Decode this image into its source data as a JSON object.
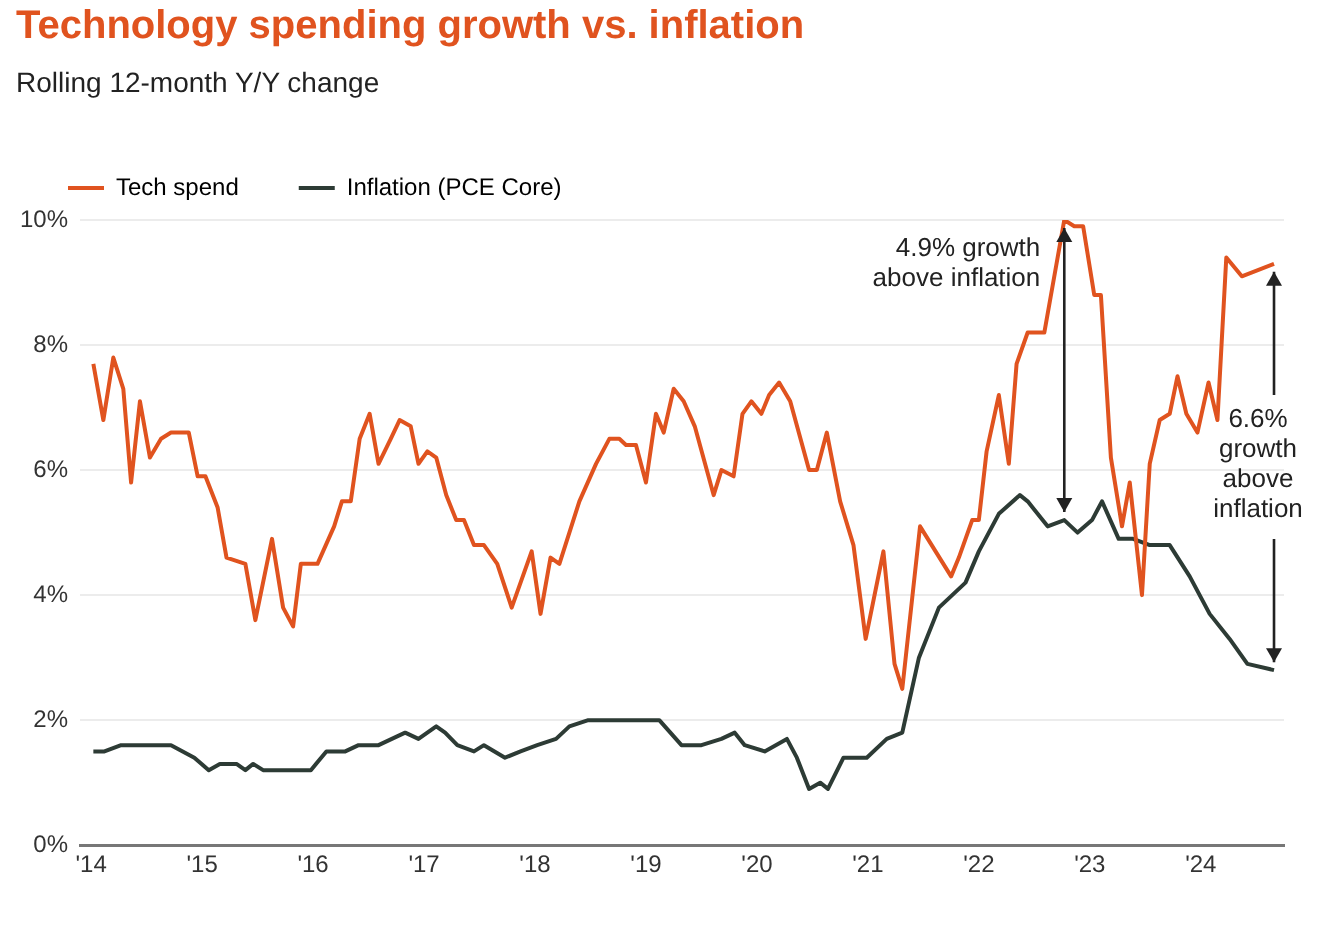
{
  "chart_data": {
    "type": "line",
    "title": "Technology spending growth vs. inflation",
    "subtitle": "Rolling 12-month Y/Y change",
    "series": [
      {
        "name": "Tech spend",
        "color": "#e0531f",
        "x": [
          2014.02,
          2014.11,
          2014.2,
          2014.29,
          2014.36,
          2014.44,
          2014.53,
          2014.63,
          2014.72,
          2014.88,
          2014.96,
          2015.03,
          2015.14,
          2015.22,
          2015.39,
          2015.48,
          2015.63,
          2015.73,
          2015.82,
          2015.89,
          2016.04,
          2016.19,
          2016.26,
          2016.34,
          2016.42,
          2016.51,
          2016.59,
          2016.7,
          2016.78,
          2016.88,
          2016.95,
          2017.03,
          2017.11,
          2017.2,
          2017.29,
          2017.36,
          2017.45,
          2017.54,
          2017.66,
          2017.79,
          2017.97,
          2018.05,
          2018.14,
          2018.22,
          2018.4,
          2018.55,
          2018.67,
          2018.76,
          2018.82,
          2018.91,
          2019.0,
          2019.09,
          2019.16,
          2019.25,
          2019.34,
          2019.44,
          2019.61,
          2019.68,
          2019.79,
          2019.87,
          2019.95,
          2020.04,
          2020.11,
          2020.2,
          2020.3,
          2020.47,
          2020.54,
          2020.63,
          2020.75,
          2020.87,
          2020.98,
          2021.06,
          2021.14,
          2021.24,
          2021.31,
          2021.47,
          2021.75,
          2021.82,
          2021.94,
          2022.0,
          2022.07,
          2022.18,
          2022.27,
          2022.34,
          2022.44,
          2022.59,
          2022.7,
          2022.77,
          2022.86,
          2022.94,
          2023.04,
          2023.1,
          2023.19,
          2023.29,
          2023.36,
          2023.47,
          2023.54,
          2023.63,
          2023.72,
          2023.79,
          2023.87,
          2023.97,
          2024.07,
          2024.15,
          2024.23,
          2024.37,
          2024.66
        ],
        "values": [
          7.7,
          6.8,
          7.8,
          7.3,
          5.8,
          7.1,
          6.2,
          6.5,
          6.6,
          6.6,
          5.9,
          5.9,
          5.4,
          4.6,
          4.5,
          3.6,
          4.9,
          3.8,
          3.5,
          4.5,
          4.5,
          5.1,
          5.5,
          5.5,
          6.5,
          6.9,
          6.1,
          6.5,
          6.8,
          6.7,
          6.1,
          6.3,
          6.2,
          5.6,
          5.2,
          5.2,
          4.8,
          4.8,
          4.5,
          3.8,
          4.7,
          3.7,
          4.6,
          4.5,
          5.5,
          6.1,
          6.5,
          6.5,
          6.4,
          6.4,
          5.8,
          6.9,
          6.6,
          7.3,
          7.1,
          6.7,
          5.6,
          6.0,
          5.9,
          6.9,
          7.1,
          6.9,
          7.2,
          7.4,
          7.1,
          6.0,
          6.0,
          6.6,
          5.5,
          4.8,
          3.3,
          4.0,
          4.7,
          2.9,
          2.5,
          5.1,
          4.3,
          4.6,
          5.2,
          5.2,
          6.3,
          7.2,
          6.1,
          7.7,
          8.2,
          8.2,
          9.3,
          10.0,
          9.9,
          9.9,
          8.8,
          8.8,
          6.2,
          5.1,
          5.8,
          4.0,
          6.1,
          6.8,
          6.9,
          7.5,
          6.9,
          6.6,
          7.4,
          6.8,
          9.4,
          9.1,
          9.3
        ]
      },
      {
        "name": "Inflation (PCE Core)",
        "color": "#2d3b35",
        "x": [
          2014.02,
          2014.12,
          2014.27,
          2014.57,
          2014.72,
          2014.93,
          2015.06,
          2015.16,
          2015.31,
          2015.39,
          2015.46,
          2015.55,
          2015.98,
          2016.12,
          2016.29,
          2016.41,
          2016.59,
          2016.71,
          2016.83,
          2016.95,
          2017.11,
          2017.19,
          2017.3,
          2017.45,
          2017.54,
          2017.73,
          2017.87,
          2018.02,
          2018.19,
          2018.31,
          2018.48,
          2018.73,
          2019.03,
          2019.12,
          2019.32,
          2019.5,
          2019.68,
          2019.8,
          2019.89,
          2020.07,
          2020.27,
          2020.36,
          2020.47,
          2020.57,
          2020.64,
          2020.78,
          2020.99,
          2021.17,
          2021.31,
          2021.46,
          2021.64,
          2021.76,
          2021.88,
          2022.0,
          2022.18,
          2022.37,
          2022.44,
          2022.62,
          2022.77,
          2022.89,
          2023.02,
          2023.11,
          2023.26,
          2023.39,
          2023.54,
          2023.72,
          2023.9,
          2024.08,
          2024.26,
          2024.42,
          2024.66
        ],
        "values": [
          1.5,
          1.5,
          1.6,
          1.6,
          1.6,
          1.4,
          1.2,
          1.3,
          1.3,
          1.2,
          1.3,
          1.2,
          1.2,
          1.5,
          1.5,
          1.6,
          1.6,
          1.7,
          1.8,
          1.7,
          1.9,
          1.8,
          1.6,
          1.5,
          1.6,
          1.4,
          1.5,
          1.6,
          1.7,
          1.9,
          2.0,
          2.0,
          2.0,
          2.0,
          1.6,
          1.6,
          1.7,
          1.8,
          1.6,
          1.5,
          1.7,
          1.4,
          0.9,
          1.0,
          0.9,
          1.4,
          1.4,
          1.7,
          1.8,
          3.0,
          3.8,
          4.0,
          4.2,
          4.7,
          5.3,
          5.6,
          5.5,
          5.1,
          5.2,
          5.0,
          5.2,
          5.5,
          4.9,
          4.9,
          4.8,
          4.8,
          4.3,
          3.7,
          3.3,
          2.9,
          2.8
        ]
      }
    ],
    "xlim": [
      2013.9,
      2024.75
    ],
    "xticks": [
      {
        "value": 2014,
        "label": "'14"
      },
      {
        "value": 2015,
        "label": "'15"
      },
      {
        "value": 2016,
        "label": "'16"
      },
      {
        "value": 2017,
        "label": "'17"
      },
      {
        "value": 2018,
        "label": "'18"
      },
      {
        "value": 2019,
        "label": "'19"
      },
      {
        "value": 2020,
        "label": "'20"
      },
      {
        "value": 2021,
        "label": "'21"
      },
      {
        "value": 2022,
        "label": "'22"
      },
      {
        "value": 2023,
        "label": "'23"
      },
      {
        "value": 2024,
        "label": "'24"
      }
    ],
    "ylim": [
      0,
      10
    ],
    "yticks": [
      {
        "value": 0,
        "label": "0%"
      },
      {
        "value": 2,
        "label": "2%"
      },
      {
        "value": 4,
        "label": "4%"
      },
      {
        "value": 6,
        "label": "6%"
      },
      {
        "value": 8,
        "label": "8%"
      },
      {
        "value": 10,
        "label": "10%"
      }
    ],
    "grid": "y",
    "legend": "top left",
    "marker": "none",
    "line_style": "solid",
    "annotations": [
      {
        "text": "4.9% growth above inflation",
        "x": 2022.77,
        "y": 10.0
      },
      {
        "text": "6.6% growth above inflation",
        "x": 2024.66,
        "y": 9.3
      }
    ]
  }
}
